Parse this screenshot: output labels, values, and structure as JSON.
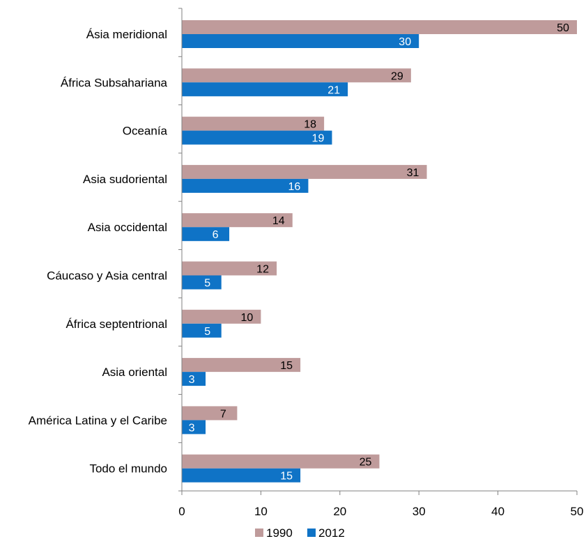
{
  "chart_data": {
    "type": "bar",
    "orientation": "horizontal",
    "title": "",
    "xlabel": "",
    "ylabel": "",
    "categories": [
      "Ásia meridional",
      "África Subsahariana",
      "Oceanía",
      "Asia sudoriental",
      "Asia occidental",
      "Cáucaso y Asia central",
      "África septentrional",
      "Asia oriental",
      "América Latina y el Caribe",
      "Todo el mundo"
    ],
    "series": [
      {
        "name": "1990",
        "color": "#bf9b9b",
        "label_color": "#000000",
        "values": [
          50,
          29,
          18,
          31,
          14,
          12,
          10,
          15,
          7,
          25
        ]
      },
      {
        "name": "2012",
        "color": "#0f73c6",
        "label_color": "#ffffff",
        "values": [
          30,
          21,
          19,
          16,
          6,
          5,
          5,
          3,
          3,
          15
        ]
      }
    ],
    "xlim": [
      0,
      50
    ],
    "xticks": [
      0,
      10,
      20,
      30,
      40,
      50
    ],
    "grid": false,
    "legend_position": "bottom",
    "data_labels": true
  }
}
